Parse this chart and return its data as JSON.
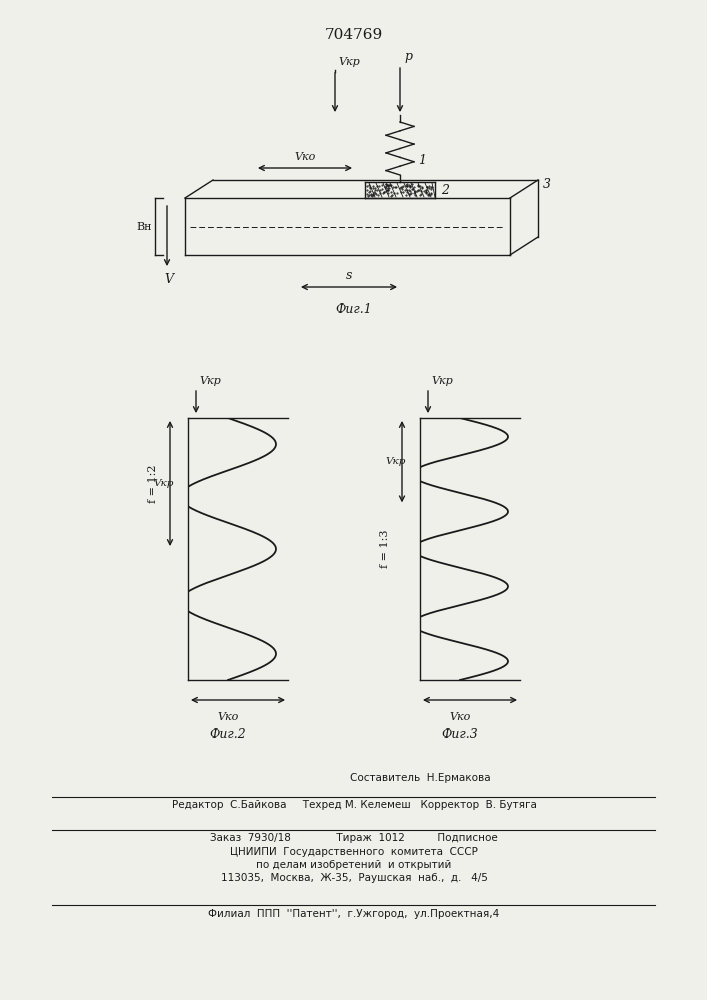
{
  "title": "704769",
  "title_fontsize": 11,
  "bg_color": "#f0f0eb",
  "line_color": "#1a1a1a",
  "fig1_caption": "Фиг.1",
  "fig2_caption": "Фиг.2",
  "fig3_caption": "Фиг.3",
  "footer_line0": "Составитель  Н.Ермакова",
  "footer_line1": "Редактор  С.Байкова     Техред М. Келемеш   Корректор  В. Бутяга",
  "footer_line2": "Заказ  7930/18              Тираж  1012          Подписное",
  "footer_line3": "ЦНИИПИ  Государственного  комитета  СССР",
  "footer_line4": "по делам изобретений  и открытий",
  "footer_line5": "113035,  Москва,  Ж-35,  Раушская  наб.,  д.   4/5",
  "footer_line6": "Филиал  ППП  ''Патент'',  г.Ужгород,  ул.Проектная,4"
}
